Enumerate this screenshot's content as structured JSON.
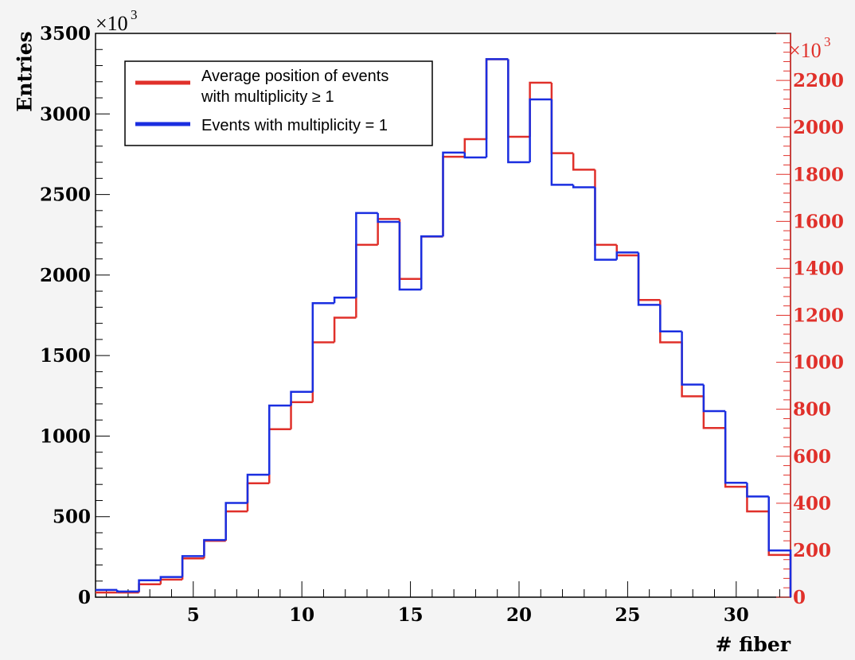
{
  "chart_data": {
    "type": "histogram-step",
    "x": [
      1,
      2,
      3,
      4,
      5,
      6,
      7,
      8,
      9,
      10,
      11,
      12,
      13,
      14,
      15,
      16,
      17,
      18,
      19,
      20,
      21,
      22,
      23,
      24,
      25,
      26,
      27,
      28,
      29,
      30,
      31,
      32
    ],
    "xlim": [
      0.5,
      32.5
    ],
    "xticks": [
      5,
      10,
      15,
      20,
      25,
      30
    ],
    "xlabel": "# fiber",
    "ylabel": "Entries",
    "ylim": [
      0,
      3500
    ],
    "yticks": [
      0,
      500,
      1000,
      1500,
      2000,
      2500,
      3000,
      3500
    ],
    "y_exponent_base": "×10",
    "y_exponent_power": "3",
    "y2lim": [
      0,
      2400
    ],
    "y2ticks": [
      0,
      200,
      400,
      600,
      800,
      1000,
      1200,
      1400,
      1600,
      1800,
      2000,
      2200
    ],
    "y2_exponent_base": "×10",
    "y2_exponent_power": "3",
    "series": [
      {
        "name": "Events with multiplicity = 1",
        "axis": "left",
        "color": "#1a2ee0",
        "values": [
          45,
          35,
          105,
          125,
          255,
          355,
          585,
          760,
          1190,
          1275,
          1825,
          1860,
          2385,
          2330,
          1910,
          2240,
          2760,
          2730,
          3340,
          2700,
          3090,
          2560,
          2545,
          2095,
          2140,
          1815,
          1650,
          1320,
          1155,
          710,
          625,
          290
        ]
      },
      {
        "name": "Average position of events with multiplicity ≥ 1",
        "axis": "right",
        "color": "#e0302a",
        "values": [
          20,
          20,
          55,
          75,
          165,
          240,
          365,
          485,
          715,
          830,
          1085,
          1190,
          1500,
          1610,
          1355,
          1535,
          1875,
          1950,
          2290,
          1960,
          2190,
          1890,
          1820,
          1500,
          1455,
          1265,
          1085,
          855,
          720,
          470,
          365,
          180
        ]
      }
    ],
    "legend": {
      "position": "top-left",
      "entries": [
        {
          "line1": "Average position of events",
          "line2": "with multiplicity ≥ 1",
          "color": "#e0302a"
        },
        {
          "line1": "Events with multiplicity = 1",
          "line2": "",
          "color": "#1a2ee0"
        }
      ]
    },
    "grid": false,
    "left_axis_color": "#000000",
    "right_axis_color": "#e0302a"
  }
}
